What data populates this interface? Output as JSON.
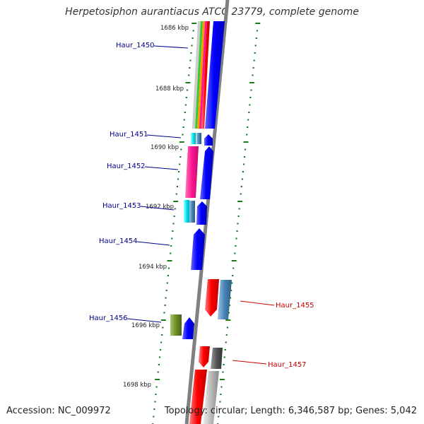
{
  "title": "Herpetosiphon aurantiacus ATCC 23779, complete genome",
  "accession": "Accession: NC_009972",
  "summary": "Topology: circular; Length: 6,346,587 bp; Genes: 5,042",
  "colors": {
    "backbone": "#808080",
    "tick": "#1a7a1a",
    "label_left": "#00008b",
    "label_right": "#cc0000",
    "forward_cds": "#0000ff",
    "reverse_cds": "#ff0000",
    "cog_steel": "#4682b4",
    "cog_cyan": "#00e5ee",
    "cog_magenta": "#ff1493",
    "cog_olive": "#6b8e23",
    "cog_gray": "#555555",
    "cog_light": "#bbbbbb"
  },
  "kbp_markers": [
    "1686 kbp",
    "1688 kbp",
    "1690 kbp",
    "1692 kbp",
    "1694 kbp",
    "1696 kbp",
    "1698 kbp"
  ],
  "genes": [
    {
      "label": "Haur_1450",
      "side": "left",
      "strand": "+",
      "cog_color": "#00e5ee"
    },
    {
      "label": "Haur_1451",
      "side": "left",
      "strand": "+",
      "cog_color": "#00e5ee"
    },
    {
      "label": "Haur_1452",
      "side": "left",
      "strand": "+",
      "cog_color": "#ff1493"
    },
    {
      "label": "Haur_1453",
      "side": "left",
      "strand": "+",
      "cog_color": "#00e5ee"
    },
    {
      "label": "Haur_1454",
      "side": "left",
      "strand": "+",
      "cog_color": ""
    },
    {
      "label": "Haur_1455",
      "side": "right",
      "strand": "-",
      "cog_color": "#4682b4"
    },
    {
      "label": "Haur_1456",
      "side": "left",
      "strand": "+",
      "cog_color": "#6b8e23"
    },
    {
      "label": "Haur_1457",
      "side": "right",
      "strand": "-",
      "cog_color": "#555555"
    }
  ]
}
